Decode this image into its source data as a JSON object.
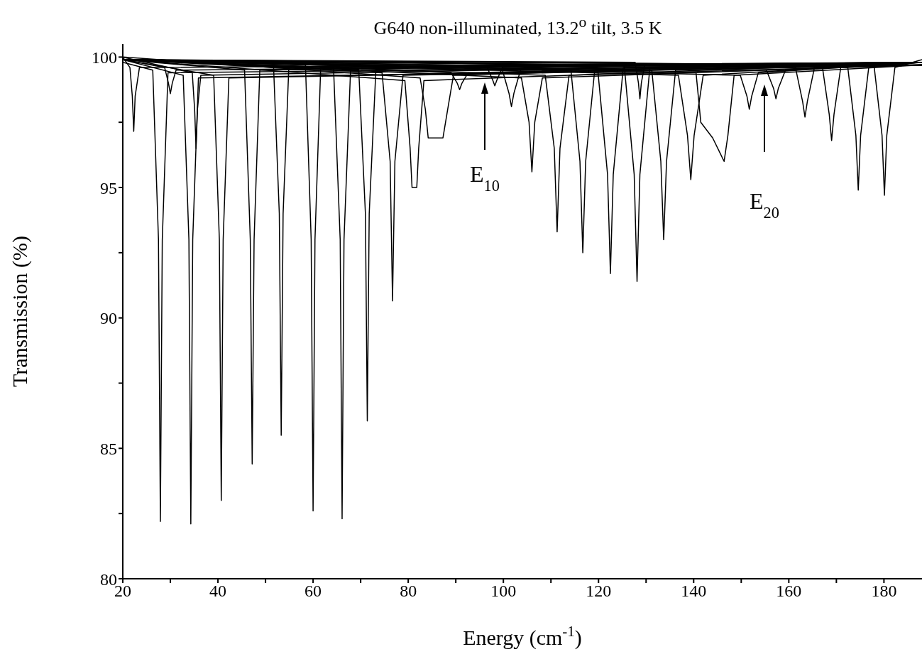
{
  "chart_data": {
    "type": "line",
    "title": "G640 non-illuminated, 13.2$^{o}$ tilt, 3.5 K",
    "xlabel": "Energy (cm$^{-1}$)",
    "ylabel": "Transmission (%)",
    "xlim": [
      20,
      188
    ],
    "ylim": [
      80,
      100.5
    ],
    "xticks": [
      20,
      {
        "value": 30,
        "label": null
      },
      40,
      {
        "value": 50,
        "label": null
      },
      60,
      {
        "value": 70,
        "label": null
      },
      80,
      {
        "value": 90,
        "label": null
      },
      100,
      {
        "value": 110,
        "label": null
      },
      120,
      {
        "value": 130,
        "label": null
      },
      140,
      {
        "value": 150,
        "label": null
      },
      160,
      {
        "value": 170,
        "label": null
      },
      180
    ],
    "yticks": [
      80,
      {
        "value": 82.5,
        "label": null
      },
      85,
      {
        "value": 87.5,
        "label": null
      },
      90,
      {
        "value": 92.5,
        "label": null
      },
      95,
      {
        "value": 97.5,
        "label": null
      },
      100
    ],
    "marker": "none",
    "line_style": "solid",
    "annotations": [
      "E$_{10}$",
      "E$_{20}$"
    ],
    "series": [
      {
        "color": "#000000",
        "x": [
          20,
          21.5,
          22,
          22.3,
          22.6,
          23.5,
          188
        ],
        "values": [
          100,
          99.6,
          98.5,
          97.15,
          98.5,
          99.6,
          99.8
        ]
      },
      {
        "color": "#000000",
        "x": [
          20,
          26.3,
          27.5,
          27.9,
          28.3,
          29.5,
          188
        ],
        "values": [
          99.8,
          99.5,
          93,
          82.2,
          93,
          99.4,
          99.7
        ]
      },
      {
        "color": "#000000",
        "x": [
          20,
          28.8,
          29.6,
          30,
          30.4,
          31.2,
          188
        ],
        "values": [
          99.9,
          99.6,
          99.0,
          98.6,
          99.0,
          99.5,
          99.8
        ]
      },
      {
        "color": "#000000",
        "x": [
          20,
          32.7,
          33.9,
          34.3,
          34.7,
          35.9,
          188
        ],
        "values": [
          99.9,
          99.3,
          93,
          82.1,
          93,
          99.2,
          99.7
        ]
      },
      {
        "color": "#000000",
        "x": [
          20,
          34.6,
          35.1,
          35.4,
          35.7,
          36.4,
          188
        ],
        "values": [
          100,
          99.4,
          98,
          96.5,
          98,
          99.3,
          99.8
        ]
      },
      {
        "color": "#000000",
        "x": [
          20,
          39.1,
          40.3,
          40.7,
          41.1,
          42.3,
          188
        ],
        "values": [
          99.9,
          99.3,
          93,
          83.0,
          93,
          99.2,
          99.7
        ]
      },
      {
        "color": "#000000",
        "x": [
          20,
          45.6,
          46.8,
          47.2,
          47.6,
          48.8,
          188
        ],
        "values": [
          99.9,
          99.5,
          93,
          84.4,
          93,
          99.5,
          99.8
        ]
      },
      {
        "color": "#000000",
        "x": [
          20,
          51.7,
          52.9,
          53.3,
          53.7,
          54.9,
          188
        ],
        "values": [
          99.9,
          99.6,
          94,
          85.5,
          94,
          99.6,
          99.8
        ]
      },
      {
        "color": "#000000",
        "x": [
          20,
          58.4,
          59.6,
          60,
          60.4,
          61.6,
          188
        ],
        "values": [
          99.9,
          99.7,
          93,
          82.6,
          93,
          99.6,
          99.7
        ]
      },
      {
        "color": "#000000",
        "x": [
          20,
          64.3,
          65.7,
          66.1,
          66.5,
          67.9,
          188
        ],
        "values": [
          99.9,
          99.6,
          93,
          82.3,
          93,
          99.6,
          99.8
        ]
      },
      {
        "color": "#000000",
        "x": [
          20,
          69.6,
          71,
          71.4,
          71.8,
          73.2,
          188
        ],
        "values": [
          99.9,
          99.5,
          94,
          86.05,
          94,
          99.5,
          99.7
        ]
      },
      {
        "color": "#000000",
        "x": [
          20,
          74.5,
          76.2,
          76.7,
          77.2,
          78.9,
          188
        ],
        "values": [
          99.9,
          99.4,
          96,
          90.65,
          96,
          99.3,
          99.7
        ]
      },
      {
        "color": "#000000",
        "x": [
          20,
          79.3,
          80.4,
          80.8,
          81.8,
          82.2,
          83.3,
          188
        ],
        "values": [
          99.9,
          99.1,
          96.5,
          95.0,
          95.0,
          96.5,
          99.1,
          99.8
        ]
      },
      {
        "color": "#000000",
        "x": [
          20,
          82.5,
          83.6,
          84.2,
          87.3,
          88.3,
          89.5,
          188
        ],
        "values": [
          100,
          99.2,
          98,
          96.9,
          96.9,
          98,
          99.3,
          99.8
        ]
      },
      {
        "color": "#000000",
        "x": [
          20,
          89,
          90.3,
          90.8,
          91.3,
          92.6,
          188
        ],
        "values": [
          99.9,
          99.4,
          99,
          98.75,
          99,
          99.4,
          99.8
        ]
      },
      {
        "color": "#000000",
        "x": [
          20,
          96.6,
          97.8,
          98.2,
          98.6,
          99.8,
          188
        ],
        "values": [
          99.9,
          99.6,
          99.1,
          98.9,
          99.1,
          99.6,
          99.8
        ]
      },
      {
        "color": "#000000",
        "x": [
          20,
          99.8,
          101.2,
          101.7,
          102.2,
          103.6,
          188
        ],
        "values": [
          99.9,
          99.5,
          98.6,
          98.1,
          98.6,
          99.5,
          99.8
        ]
      },
      {
        "color": "#000000",
        "x": [
          20,
          103.8,
          105.4,
          106,
          106.6,
          108.2,
          188
        ],
        "values": [
          99.9,
          99.2,
          97.5,
          95.6,
          97.5,
          99.2,
          99.7
        ]
      },
      {
        "color": "#000000",
        "x": [
          20,
          108.8,
          110.7,
          111.3,
          111.9,
          113.8,
          188
        ],
        "values": [
          99.9,
          99.3,
          96.5,
          93.3,
          96.5,
          99.3,
          99.7
        ]
      },
      {
        "color": "#000000",
        "x": [
          20,
          114.2,
          116.1,
          116.7,
          117.3,
          119.2,
          188
        ],
        "values": [
          99.9,
          99.5,
          96,
          92.5,
          96,
          99.5,
          99.8
        ]
      },
      {
        "color": "#000000",
        "x": [
          20,
          119.8,
          121.9,
          122.5,
          123.1,
          125.2,
          188
        ],
        "values": [
          99.9,
          99.6,
          95.5,
          91.7,
          95.5,
          99.6,
          99.8
        ]
      },
      {
        "color": "#000000",
        "x": [
          20,
          125.4,
          127.5,
          128.1,
          128.7,
          130.8,
          188
        ],
        "values": [
          99.9,
          99.7,
          95.5,
          91.4,
          95.5,
          99.6,
          99.8
        ]
      },
      {
        "color": "#000000",
        "x": [
          20,
          127.7,
          128.4,
          128.7,
          129,
          129.7,
          188
        ],
        "values": [
          99.9,
          99.8,
          99,
          98.4,
          99,
          99.7,
          99.8
        ]
      },
      {
        "color": "#000000",
        "x": [
          20,
          131.2,
          133.1,
          133.7,
          134.3,
          136.2,
          188
        ],
        "values": [
          99.9,
          99.5,
          96,
          93.0,
          96,
          99.5,
          99.8
        ]
      },
      {
        "color": "#000000",
        "x": [
          20,
          136.8,
          138.7,
          139.4,
          140.1,
          142,
          188
        ],
        "values": [
          99.9,
          99.3,
          97,
          95.3,
          97,
          99.3,
          99.8
        ]
      },
      {
        "color": "#000000",
        "x": [
          20,
          140.5,
          141.5,
          144,
          146.4,
          147.2,
          148.5,
          188
        ],
        "values": [
          99.9,
          99.4,
          97.5,
          96.9,
          96.0,
          97,
          99.3,
          99.7
        ]
      },
      {
        "color": "#000000",
        "x": [
          20,
          149.8,
          151.2,
          151.7,
          152.2,
          153.6,
          188
        ],
        "values": [
          99.9,
          99.3,
          98.5,
          98.0,
          98.5,
          99.4,
          99.8
        ]
      },
      {
        "color": "#000000",
        "x": [
          20,
          155.3,
          156.8,
          157.3,
          157.8,
          159.3,
          188
        ],
        "values": [
          99.9,
          99.5,
          98.8,
          98.4,
          98.8,
          99.5,
          99.8
        ]
      },
      {
        "color": "#000000",
        "x": [
          20,
          161.4,
          162.9,
          163.4,
          163.9,
          165.4,
          188
        ],
        "values": [
          99.9,
          99.6,
          98.3,
          97.7,
          98.3,
          99.6,
          99.8
        ]
      },
      {
        "color": "#000000",
        "x": [
          20,
          167,
          168.5,
          169,
          169.5,
          171,
          188
        ],
        "values": [
          99.9,
          99.7,
          97.8,
          96.8,
          97.8,
          99.7,
          99.8
        ]
      },
      {
        "color": "#000000",
        "x": [
          20,
          172.4,
          174.1,
          174.6,
          175.1,
          176.8,
          188
        ],
        "values": [
          99.9,
          99.6,
          97,
          94.9,
          97,
          99.6,
          99.8
        ]
      },
      {
        "color": "#000000",
        "x": [
          20,
          177.9,
          179.6,
          180.1,
          180.6,
          182.3,
          188
        ],
        "values": [
          99.9,
          99.7,
          97,
          94.7,
          97,
          99.6,
          99.9
        ]
      }
    ]
  }
}
